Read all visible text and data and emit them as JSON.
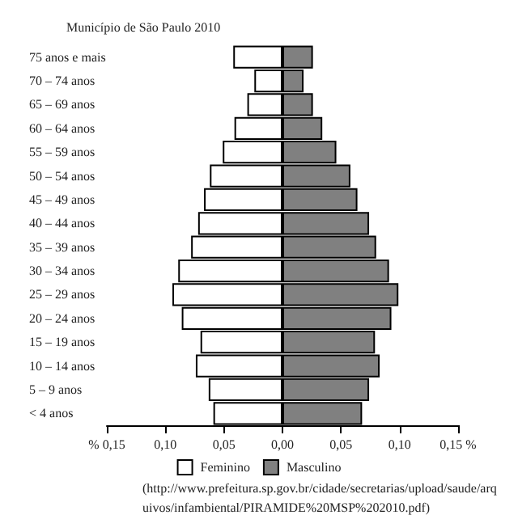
{
  "chart_data": {
    "type": "bar",
    "orientation": "horizontal",
    "stacked": true,
    "title": "Município de São Paulo 2010",
    "categories": [
      "75 anos e mais",
      "70 – 74 anos",
      "65 – 69 anos",
      "60 – 64 anos",
      "55 – 59 anos",
      "50 – 54 anos",
      "45 – 49 anos",
      "40 – 44 anos",
      "35 – 39 anos",
      "30 – 34 anos",
      "25 – 29 anos",
      "20 – 24 anos",
      "15 – 19 anos",
      "10 – 14 anos",
      "5 – 9 anos",
      "< 4 anos"
    ],
    "series": [
      {
        "name": "Feminino",
        "color": "#ffffff",
        "values": [
          -0.042,
          -0.024,
          -0.03,
          -0.041,
          -0.051,
          -0.062,
          -0.067,
          -0.072,
          -0.078,
          -0.089,
          -0.094,
          -0.086,
          -0.07,
          -0.074,
          -0.063,
          -0.059
        ]
      },
      {
        "name": "Masculino",
        "color": "#808080",
        "values": [
          0.026,
          0.018,
          0.026,
          0.034,
          0.046,
          0.058,
          0.064,
          0.074,
          0.08,
          0.091,
          0.099,
          0.093,
          0.079,
          0.083,
          0.074,
          0.068
        ]
      }
    ],
    "xlim": [
      -0.15,
      0.15
    ],
    "xticks": [
      {
        "value": -0.15,
        "label": "% 0,15"
      },
      {
        "value": -0.1,
        "label": "0,10"
      },
      {
        "value": -0.05,
        "label": "0,05"
      },
      {
        "value": 0,
        "label": "0,00"
      },
      {
        "value": 0.05,
        "label": "0,05"
      },
      {
        "value": 0.1,
        "label": "0,10"
      },
      {
        "value": 0.15,
        "label": "0,15 %"
      }
    ],
    "grid": false,
    "legend": "bottom",
    "annotations": [
      "(http://www.prefeitura.sp.gov.br/cidade/secretarias/upload/saude/arquivos/infambiental/PIRAMIDE%20MSP%202010.pdf)"
    ]
  }
}
